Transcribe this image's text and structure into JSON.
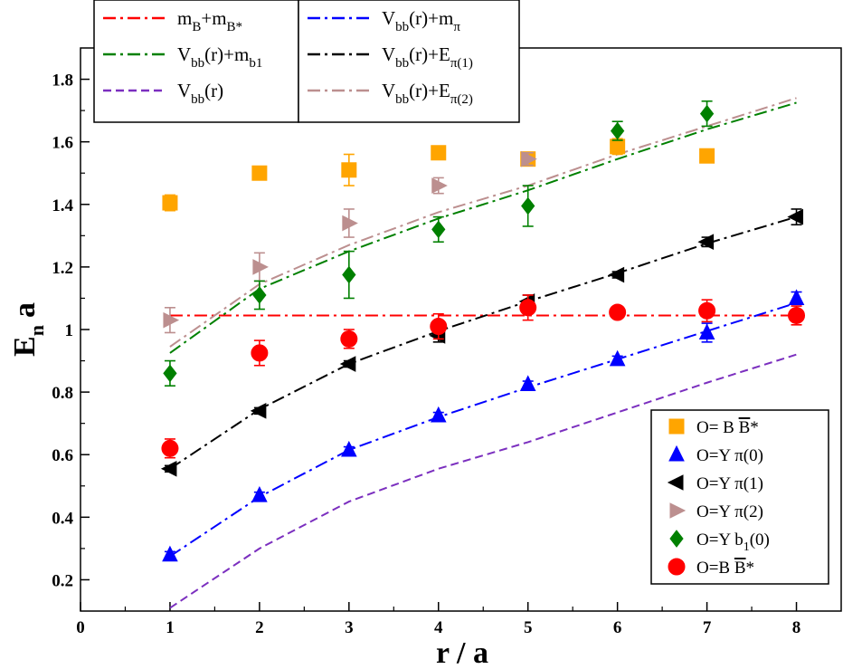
{
  "chart_data": {
    "type": "scatter",
    "xlabel": "r / a",
    "ylabel": "E",
    "ylabel_sub": "n",
    "ylabel_tail": "a",
    "xlim": [
      0,
      8.5
    ],
    "ylim": [
      0.1,
      1.9
    ],
    "x_ticks": [
      0,
      1,
      2,
      3,
      4,
      5,
      6,
      7,
      8
    ],
    "y_ticks": [
      0.2,
      0.4,
      0.6,
      0.8,
      1.0,
      1.2,
      1.4,
      1.6,
      1.8
    ],
    "x_tick_labels": [
      "0",
      "1",
      "2",
      "3",
      "4",
      "5",
      "6",
      "7",
      "8"
    ],
    "y_tick_labels": [
      "0.2",
      "0.4",
      "0.6",
      "0.8",
      "1",
      "1.2",
      "1.4",
      "1.6",
      "1.8"
    ],
    "lines": [
      {
        "name": "mB+mB*",
        "color": "#ff0000",
        "dash": "dashdot",
        "x": [
          1,
          8
        ],
        "y": [
          1.045,
          1.045
        ]
      },
      {
        "name": "Vbb(r)+mb1",
        "color": "#008000",
        "dash": "dashdot",
        "x": [
          1,
          2,
          3,
          4,
          5,
          6,
          7,
          8
        ],
        "y": [
          0.925,
          1.13,
          1.25,
          1.355,
          1.445,
          1.545,
          1.64,
          1.725
        ]
      },
      {
        "name": "Vbb(r)",
        "color": "#7b2fbf",
        "dash": "dashed",
        "x": [
          1,
          2,
          3,
          4,
          5,
          6,
          7,
          8
        ],
        "y": [
          0.11,
          0.3,
          0.45,
          0.555,
          0.64,
          0.735,
          0.83,
          0.92
        ]
      },
      {
        "name": "Vbb(r)+mpi",
        "color": "#0000ff",
        "dash": "dashdot",
        "x": [
          1,
          2,
          3,
          4,
          5,
          6,
          7,
          8
        ],
        "y": [
          0.275,
          0.465,
          0.615,
          0.72,
          0.815,
          0.905,
          0.995,
          1.085
        ]
      },
      {
        "name": "Vbb(r)+Epi(1)",
        "color": "#000000",
        "dash": "dashdot",
        "x": [
          1,
          2,
          3,
          4,
          5,
          6,
          7,
          8
        ],
        "y": [
          0.555,
          0.745,
          0.89,
          0.995,
          1.09,
          1.18,
          1.275,
          1.36
        ]
      },
      {
        "name": "Vbb(r)+Epi(2)",
        "color": "#bc8f8f",
        "dash": "dashdot",
        "x": [
          1,
          2,
          3,
          4,
          5,
          6,
          7,
          8
        ],
        "y": [
          0.945,
          1.145,
          1.27,
          1.375,
          1.46,
          1.56,
          1.65,
          1.74
        ]
      }
    ],
    "series": [
      {
        "name": "O= B B*",
        "marker": "square",
        "color": "#ffa500",
        "x": [
          1,
          2,
          3,
          4,
          5,
          6,
          7
        ],
        "y": [
          1.405,
          1.5,
          1.51,
          1.565,
          1.545,
          1.585,
          1.555
        ],
        "err": [
          0.025,
          0.02,
          0.05,
          0.015,
          0.02,
          0.025,
          0.02
        ]
      },
      {
        "name": "O=Y pi(0)",
        "marker": "triangle-up",
        "color": "#0000ff",
        "x": [
          1,
          2,
          3,
          4,
          5,
          6,
          7,
          8
        ],
        "y": [
          0.28,
          0.47,
          0.615,
          0.725,
          0.825,
          0.905,
          0.99,
          1.1
        ],
        "err": [
          0.01,
          0.01,
          0.01,
          0.01,
          0.01,
          0.01,
          0.03,
          0.02
        ]
      },
      {
        "name": "O=Y pi(1)",
        "marker": "triangle-left",
        "color": "#000000",
        "x": [
          1,
          2,
          3,
          4,
          5,
          6,
          7,
          8
        ],
        "y": [
          0.555,
          0.74,
          0.89,
          0.98,
          1.09,
          1.175,
          1.28,
          1.36
        ],
        "err": [
          0.01,
          0.01,
          0.01,
          0.02,
          0.02,
          0.01,
          0.015,
          0.025
        ]
      },
      {
        "name": "O=Y pi(2)",
        "marker": "triangle-right",
        "color": "#bc8f8f",
        "x": [
          1,
          2,
          3,
          4,
          5
        ],
        "y": [
          1.03,
          1.2,
          1.34,
          1.46,
          1.545
        ],
        "err": [
          0.04,
          0.045,
          0.045,
          0.025,
          0.02
        ]
      },
      {
        "name": "O=Y b1(0)",
        "marker": "diamond",
        "color": "#008000",
        "x": [
          1,
          2,
          3,
          4,
          5,
          6,
          7
        ],
        "y": [
          0.86,
          1.11,
          1.175,
          1.32,
          1.395,
          1.635,
          1.69
        ],
        "err": [
          0.04,
          0.045,
          0.075,
          0.04,
          0.065,
          0.03,
          0.04
        ]
      },
      {
        "name": "O=B B*",
        "marker": "circle",
        "color": "#ff0000",
        "x": [
          1,
          2,
          3,
          4,
          5,
          6,
          7,
          8
        ],
        "y": [
          0.62,
          0.925,
          0.97,
          1.01,
          1.07,
          1.055,
          1.06,
          1.045
        ],
        "err": [
          0.03,
          0.04,
          0.03,
          0.04,
          0.04,
          0.015,
          0.035,
          0.03
        ]
      }
    ],
    "legend_lines": [
      {
        "line": 0,
        "text": "m",
        "sub": "B",
        "text2": "+m",
        "sub2": "B*",
        "text3": ""
      },
      {
        "line": 1,
        "text": "V",
        "sub": "bb",
        "text2": "(r)+m",
        "sub2": "b1",
        "text3": ""
      },
      {
        "line": 2,
        "text": "V",
        "sub": "bb",
        "text2": "(r)",
        "sub2": "",
        "text3": ""
      },
      {
        "line": 3,
        "text": "V",
        "sub": "bb",
        "text2": "(r)+m",
        "sub2": "π",
        "text3": ""
      },
      {
        "line": 4,
        "text": "V",
        "sub": "bb",
        "text2": "(r)+E",
        "sub2": "π(1)",
        "text3": ""
      },
      {
        "line": 5,
        "text": "V",
        "sub": "bb",
        "text2": "(r)+E",
        "sub2": "π(2)",
        "text3": ""
      }
    ],
    "legend_markers": [
      {
        "series": 0,
        "text": "O= B ",
        "bar_text": "B",
        "tail": "*",
        "sub": ""
      },
      {
        "series": 1,
        "text": "O=Y π(0)",
        "bar_text": "",
        "tail": "",
        "sub": ""
      },
      {
        "series": 2,
        "text": "O=Y π(1)",
        "bar_text": "",
        "tail": "",
        "sub": ""
      },
      {
        "series": 3,
        "text": "O=Y π(2)",
        "bar_text": "",
        "tail": "",
        "sub": ""
      },
      {
        "series": 4,
        "text": "O=Y b",
        "bar_text": "",
        "tail": "(0)",
        "sub": "1"
      },
      {
        "series": 5,
        "text": "O=B ",
        "bar_text": "B",
        "tail": "*",
        "sub": ""
      }
    ],
    "line_legend_position": "top-left",
    "marker_legend_position": "bottom-right"
  }
}
